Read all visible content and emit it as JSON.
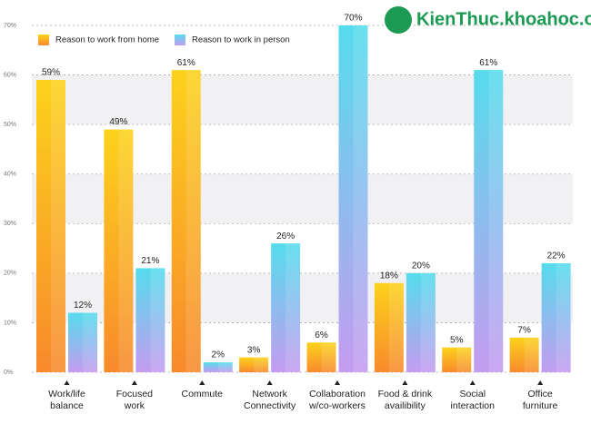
{
  "chart_data": {
    "type": "bar",
    "watermark": "KienThuc.khoahoc.org",
    "categories": [
      "Work/life\nbalance",
      "Focused\nwork",
      "Commute",
      "Network\nConnectivity",
      "Collaboration\nw/co-workers",
      "Food & drink\navailibility",
      "Social\ninteraction",
      "Office\nfurniture"
    ],
    "series": [
      {
        "name": "Reason to work from home",
        "color": "#f7a51e",
        "values": [
          59,
          49,
          61,
          3,
          6,
          18,
          5,
          7
        ],
        "value_labels": [
          "59%",
          "49%",
          "61%",
          "3%",
          "6%",
          "18%",
          "5%",
          "7%"
        ]
      },
      {
        "name": "Reason to work in person",
        "color": "#5fd6ea",
        "values": [
          12,
          21,
          2,
          26,
          70,
          20,
          61,
          22
        ],
        "value_labels": [
          "12%",
          "21%",
          "2%",
          "26%",
          "70%",
          "20%",
          "61%",
          "22%"
        ]
      }
    ],
    "ylim": [
      0,
      70
    ],
    "yticks": [
      {
        "value": 0,
        "label": "0%"
      },
      {
        "value": 10,
        "label": "10%"
      },
      {
        "value": 20,
        "label": "20%"
      },
      {
        "value": 30,
        "label": "30%"
      },
      {
        "value": 40,
        "label": "40%"
      },
      {
        "value": 50,
        "label": "50%"
      },
      {
        "value": 60,
        "label": "60%"
      },
      {
        "value": 70,
        "label": "70%"
      }
    ],
    "grid": true,
    "legend": "top-left"
  }
}
